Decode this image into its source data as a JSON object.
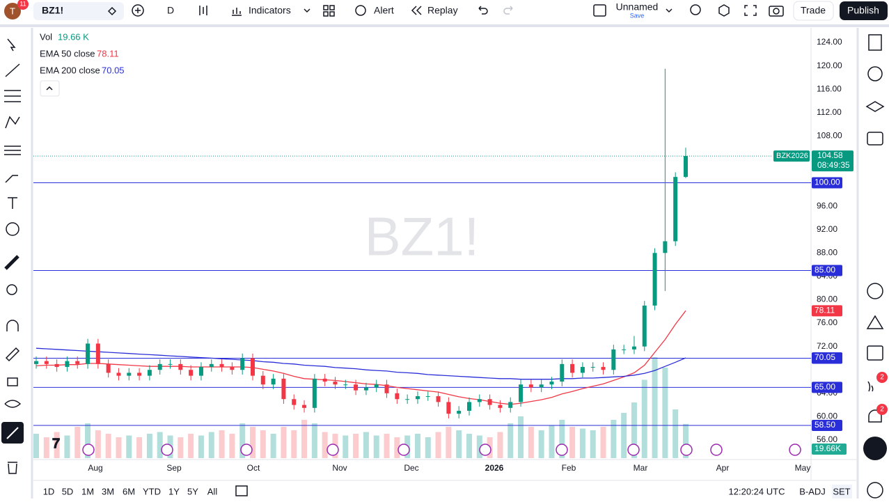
{
  "toolbar": {
    "notifications": "11",
    "symbol": "BZ1!",
    "interval": "D",
    "indicators": "Indicators",
    "alert": "Alert",
    "replay": "Replay",
    "layout_name": "Unnamed",
    "save": "Save",
    "trade": "Trade",
    "publish": "Publish"
  },
  "legend": {
    "vol_name": "Vol",
    "vol_value": "19.66 K",
    "ema50_name": "EMA 50 close",
    "ema50_value": "78.11",
    "ema200_name": "EMA 200 close",
    "ema200_value": "70.05"
  },
  "right_toolbar": {
    "badge_1": "2",
    "badge_2": "2"
  },
  "bottom_bar": {
    "ranges": [
      "1D",
      "5D",
      "1M",
      "3M",
      "6M",
      "YTD",
      "1Y",
      "5Y",
      "All"
    ],
    "clock": "12:20:24 UTC",
    "adjustment": "B-ADJ",
    "session": "SET"
  },
  "chart_data": {
    "type": "candlestick",
    "watermark": "BZ1!",
    "contract": "BZK2026",
    "last_price": 104.58,
    "countdown": "08:49:35",
    "last_volume_label": "19.66K",
    "open": [
      69,
      69.5,
      69,
      68.5,
      69.5,
      69,
      72.5,
      69,
      67.5,
      67,
      67.5,
      67,
      68,
      69,
      69,
      68,
      67,
      68.5,
      69,
      68.5,
      68,
      70,
      67,
      65.5,
      66.5,
      63,
      62,
      61.5,
      66.5,
      66,
      65.5,
      65.5,
      64.5,
      65,
      65.5,
      64,
      63,
      63,
      63.5,
      63.5,
      62.5,
      60.5,
      61,
      62.5,
      63,
      62,
      61.5,
      62.5,
      65.5,
      65,
      65.5,
      66,
      69,
      67.5,
      68.5,
      68.5,
      68,
      71.5,
      71.5,
      72,
      79,
      88,
      90,
      101
    ],
    "high": [
      70.3,
      70.3,
      69.8,
      70.3,
      70.3,
      73.3,
      73.3,
      69.8,
      68.3,
      68.3,
      68.3,
      68.8,
      69.8,
      69.8,
      69.8,
      68.8,
      69.3,
      69.8,
      69.8,
      69.3,
      70.8,
      70.8,
      67.8,
      67.3,
      67.3,
      63.8,
      62.8,
      67.3,
      67.3,
      66.8,
      66.3,
      66.3,
      65.8,
      66.3,
      66.3,
      64.8,
      63.8,
      64.3,
      64.3,
      64.3,
      63.3,
      61.8,
      63.3,
      63.8,
      63.8,
      62.8,
      63.3,
      66.3,
      66.3,
      66.3,
      66.8,
      69.8,
      69.8,
      69.3,
      69.3,
      69.3,
      72.3,
      72.3,
      73.8,
      79.8,
      88.8,
      119.5,
      101.8,
      106
    ],
    "low": [
      68.2,
      68.2,
      67.7,
      67.7,
      68.2,
      68.2,
      68.2,
      66.7,
      66.2,
      66.2,
      66.2,
      66.2,
      67.2,
      68.2,
      67.2,
      66.2,
      66.2,
      67.7,
      67.7,
      67.2,
      67.2,
      66.2,
      64.7,
      64.7,
      62.2,
      61.2,
      60.7,
      60.7,
      65.2,
      64.7,
      64.7,
      63.7,
      63.7,
      64.2,
      63.2,
      62.2,
      62.2,
      62.2,
      62.7,
      61.7,
      59.7,
      59.7,
      60.2,
      61.7,
      61.2,
      60.7,
      60.7,
      61.7,
      64.2,
      64.2,
      64.7,
      65.2,
      66.7,
      66.7,
      67.7,
      67.2,
      67.2,
      70.7,
      70.7,
      71.2,
      78.2,
      81.5,
      89.2,
      100.8
    ],
    "close": [
      69.5,
      69,
      68.5,
      69.5,
      69,
      72.5,
      69,
      67.5,
      67,
      67.5,
      67,
      68,
      69,
      69,
      68,
      67,
      68.5,
      69,
      68.5,
      68,
      70,
      67,
      65.5,
      66.5,
      63,
      62,
      61.5,
      66.5,
      66,
      65.5,
      65.5,
      64.5,
      65,
      65.5,
      64,
      63,
      63,
      63.5,
      63.5,
      62.5,
      60.5,
      61,
      62.5,
      63,
      62,
      61.5,
      62.5,
      65.5,
      65,
      65.5,
      66,
      69,
      67.5,
      68.5,
      68.5,
      68,
      71.5,
      71.5,
      72,
      79,
      88,
      90,
      101,
      104.58
    ],
    "volume": [
      14,
      12,
      15,
      13,
      18,
      20,
      16,
      14,
      12,
      13,
      12,
      14,
      15,
      13,
      12,
      14,
      13,
      15,
      16,
      14,
      20,
      18,
      16,
      14,
      18,
      16,
      22,
      20,
      15,
      14,
      13,
      14,
      15,
      13,
      14,
      12,
      13,
      14,
      12,
      15,
      18,
      16,
      14,
      13,
      12,
      15,
      20,
      24,
      18,
      16,
      19,
      22,
      18,
      17,
      16,
      18,
      22,
      26,
      32,
      45,
      58,
      52,
      28,
      19.66
    ],
    "series": [
      {
        "name": "EMA 50 close",
        "color": "#f23645",
        "values": [
          68.7,
          68.8,
          68.8,
          68.9,
          68.9,
          69.1,
          69.1,
          69.0,
          68.9,
          68.8,
          68.7,
          68.6,
          68.6,
          68.6,
          68.6,
          68.5,
          68.5,
          68.5,
          68.5,
          68.5,
          68.5,
          68.4,
          68.1,
          67.8,
          67.4,
          66.9,
          66.5,
          66.4,
          66.3,
          66.2,
          66.0,
          65.8,
          65.6,
          65.5,
          65.3,
          65.0,
          64.8,
          64.6,
          64.4,
          64.2,
          63.8,
          63.4,
          63.1,
          62.9,
          62.6,
          62.3,
          62.1,
          62.3,
          62.6,
          62.9,
          63.3,
          63.9,
          64.3,
          64.8,
          65.2,
          65.6,
          66.2,
          66.8,
          67.5,
          68.8,
          71.0,
          73.2,
          75.8,
          78.11
        ]
      },
      {
        "name": "EMA 200 close",
        "color": "#2a2ed8",
        "values": [
          71.7,
          71.6,
          71.5,
          71.4,
          71.3,
          71.2,
          71.1,
          71.0,
          70.9,
          70.8,
          70.7,
          70.6,
          70.5,
          70.4,
          70.3,
          70.2,
          70.1,
          70.0,
          69.9,
          69.8,
          69.7,
          69.6,
          69.4,
          69.3,
          69.1,
          69.0,
          68.8,
          68.7,
          68.6,
          68.4,
          68.3,
          68.2,
          68.0,
          67.9,
          67.8,
          67.6,
          67.5,
          67.4,
          67.2,
          67.1,
          67.0,
          66.9,
          66.8,
          66.7,
          66.6,
          66.5,
          66.5,
          66.4,
          66.4,
          66.4,
          66.4,
          66.5,
          66.5,
          66.6,
          66.6,
          66.7,
          66.8,
          66.9,
          67.1,
          67.4,
          67.9,
          68.6,
          69.3,
          70.05
        ]
      }
    ],
    "levels": [
      {
        "value": 100,
        "label": "100.00"
      },
      {
        "value": 85,
        "label": "85.00"
      },
      {
        "value": 70,
        "label": "70.00"
      },
      {
        "value": 65,
        "label": "65.00"
      },
      {
        "value": 58.5,
        "label": "58.50"
      }
    ],
    "ylim": [
      53.5,
      126.5
    ],
    "yticks": [
      {
        "value": 124,
        "label": "124.00"
      },
      {
        "value": 120,
        "label": "120.00"
      },
      {
        "value": 116,
        "label": "116.00"
      },
      {
        "value": 112,
        "label": "112.00"
      },
      {
        "value": 108,
        "label": "108.00"
      },
      {
        "value": 96,
        "label": "96.00"
      },
      {
        "value": 92,
        "label": "92.00"
      },
      {
        "value": 88,
        "label": "88.00"
      },
      {
        "value": 84,
        "label": "84.00"
      },
      {
        "value": 80,
        "label": "80.00"
      },
      {
        "value": 76,
        "label": "76.00"
      },
      {
        "value": 72,
        "label": "72.00"
      },
      {
        "value": 64,
        "label": "64.00"
      },
      {
        "value": 60,
        "label": "60.00"
      },
      {
        "value": 56,
        "label": "56.00"
      }
    ],
    "xticks": [
      "Aug",
      "Sep",
      "Oct",
      "Nov",
      "Dec",
      "2026",
      "Feb",
      "Mar",
      "Apr",
      "May"
    ]
  }
}
